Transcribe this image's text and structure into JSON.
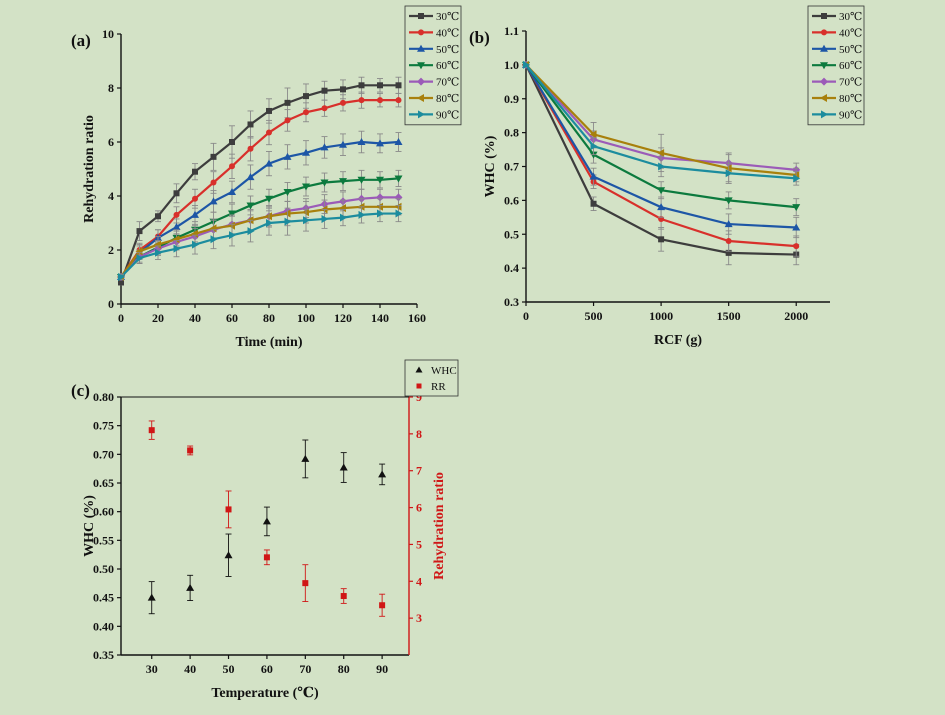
{
  "chart_data": [
    {
      "type": "line",
      "panel_label": "(a)",
      "xlabel": "Time (min)",
      "ylabel": "Rehydration ratio",
      "xlim": [
        0,
        160
      ],
      "ylim": [
        0,
        10
      ],
      "xticks": [
        "0",
        "20",
        "40",
        "60",
        "80",
        "100",
        "120",
        "140",
        "160"
      ],
      "yticks": [
        "0",
        "2",
        "4",
        "6",
        "8",
        "10"
      ],
      "x": [
        0,
        10,
        20,
        30,
        40,
        50,
        60,
        70,
        80,
        90,
        100,
        110,
        120,
        130,
        140,
        150
      ],
      "legend_position": "top-right",
      "series": [
        {
          "name": "30℃",
          "color": "#3d3d3d",
          "marker": "square",
          "values": [
            0.8,
            2.7,
            3.25,
            4.1,
            4.9,
            5.45,
            6.0,
            6.65,
            7.15,
            7.45,
            7.7,
            7.9,
            7.95,
            8.1,
            8.1,
            8.1
          ],
          "err": [
            0.1,
            0.35,
            0.2,
            0.35,
            0.3,
            0.5,
            0.6,
            0.5,
            0.45,
            0.55,
            0.45,
            0.35,
            0.35,
            0.3,
            0.25,
            0.3
          ]
        },
        {
          "name": "40℃",
          "color": "#d8302b",
          "marker": "circle",
          "values": [
            1.0,
            2.0,
            2.5,
            3.3,
            3.9,
            4.5,
            5.1,
            5.75,
            6.35,
            6.8,
            7.1,
            7.25,
            7.45,
            7.55,
            7.55,
            7.55
          ],
          "err": [
            0.1,
            0.25,
            0.25,
            0.3,
            0.35,
            0.4,
            0.45,
            0.45,
            0.45,
            0.4,
            0.35,
            0.3,
            0.3,
            0.3,
            0.25,
            0.25
          ]
        },
        {
          "name": "50℃",
          "color": "#1d56a6",
          "marker": "triangle-up",
          "values": [
            1.0,
            1.9,
            2.45,
            2.85,
            3.3,
            3.8,
            4.15,
            4.7,
            5.2,
            5.45,
            5.6,
            5.8,
            5.9,
            6.0,
            5.95,
            6.0
          ],
          "err": [
            0.1,
            0.25,
            0.3,
            0.3,
            0.35,
            0.4,
            0.4,
            0.45,
            0.45,
            0.45,
            0.45,
            0.4,
            0.4,
            0.4,
            0.35,
            0.35
          ]
        },
        {
          "name": "60℃",
          "color": "#0c7a3e",
          "marker": "triangle-down",
          "values": [
            1.0,
            1.75,
            2.1,
            2.45,
            2.75,
            3.05,
            3.35,
            3.65,
            3.9,
            4.15,
            4.35,
            4.5,
            4.55,
            4.6,
            4.6,
            4.65
          ],
          "err": [
            0.1,
            0.25,
            0.25,
            0.3,
            0.3,
            0.35,
            0.35,
            0.35,
            0.35,
            0.35,
            0.35,
            0.35,
            0.35,
            0.35,
            0.3,
            0.3
          ]
        },
        {
          "name": "70℃",
          "color": "#9b5bb8",
          "marker": "diamond",
          "values": [
            1.0,
            1.75,
            2.05,
            2.3,
            2.5,
            2.75,
            2.95,
            3.1,
            3.25,
            3.45,
            3.55,
            3.7,
            3.8,
            3.9,
            3.95,
            3.95
          ],
          "err": [
            0.1,
            0.2,
            0.25,
            0.3,
            0.3,
            0.35,
            0.35,
            0.35,
            0.35,
            0.35,
            0.35,
            0.35,
            0.35,
            0.35,
            0.3,
            0.3
          ]
        },
        {
          "name": "80℃",
          "color": "#a8800c",
          "marker": "triangle-left",
          "values": [
            1.0,
            1.95,
            2.2,
            2.4,
            2.6,
            2.8,
            2.9,
            3.1,
            3.25,
            3.35,
            3.4,
            3.5,
            3.55,
            3.6,
            3.6,
            3.6
          ],
          "err": [
            0.1,
            0.25,
            0.3,
            0.3,
            0.3,
            0.35,
            0.35,
            0.4,
            0.4,
            0.45,
            0.4,
            0.35,
            0.3,
            0.3,
            0.3,
            0.3
          ]
        },
        {
          "name": "90℃",
          "color": "#1c8c9e",
          "marker": "triangle-right",
          "values": [
            1.0,
            1.7,
            1.9,
            2.05,
            2.2,
            2.4,
            2.55,
            2.7,
            3.0,
            3.05,
            3.1,
            3.15,
            3.2,
            3.3,
            3.35,
            3.35
          ],
          "err": [
            0.1,
            0.2,
            0.25,
            0.3,
            0.35,
            0.35,
            0.4,
            0.4,
            0.45,
            0.5,
            0.4,
            0.35,
            0.3,
            0.3,
            0.3,
            0.3
          ]
        }
      ]
    },
    {
      "type": "line",
      "panel_label": "(b)",
      "xlabel": "RCF (g)",
      "ylabel": "WHC (%)",
      "xlim": [
        0,
        2250
      ],
      "ylim": [
        0.3,
        1.1
      ],
      "xticks": [
        "0",
        "500",
        "1000",
        "1500",
        "2000"
      ],
      "yticks": [
        "0.3",
        "0.4",
        "0.5",
        "0.6",
        "0.7",
        "0.8",
        "0.9",
        "1.0",
        "1.1"
      ],
      "x": [
        0,
        500,
        1000,
        1500,
        2000
      ],
      "legend_position": "top-right",
      "series": [
        {
          "name": "30℃",
          "color": "#3d3d3d",
          "marker": "square",
          "values": [
            1.0,
            0.59,
            0.485,
            0.445,
            0.44
          ],
          "err": [
            0,
            0.02,
            0.035,
            0.035,
            0.03
          ]
        },
        {
          "name": "40℃",
          "color": "#d8302b",
          "marker": "circle",
          "values": [
            1.0,
            0.655,
            0.545,
            0.48,
            0.465
          ],
          "err": [
            0,
            0.02,
            0.03,
            0.03,
            0.03
          ]
        },
        {
          "name": "50℃",
          "color": "#1d56a6",
          "marker": "triangle-up",
          "values": [
            1.0,
            0.67,
            0.58,
            0.53,
            0.52
          ],
          "err": [
            0,
            0.025,
            0.03,
            0.03,
            0.03
          ]
        },
        {
          "name": "60℃",
          "color": "#0c7a3e",
          "marker": "triangle-down",
          "values": [
            1.0,
            0.735,
            0.63,
            0.6,
            0.58
          ],
          "err": [
            0,
            0.025,
            0.025,
            0.025,
            0.025
          ]
        },
        {
          "name": "70℃",
          "color": "#9b5bb8",
          "marker": "diamond",
          "values": [
            1.0,
            0.78,
            0.725,
            0.71,
            0.69
          ],
          "err": [
            0,
            0.025,
            0.03,
            0.03,
            0.02
          ]
        },
        {
          "name": "80℃",
          "color": "#a8800c",
          "marker": "triangle-left",
          "values": [
            1.0,
            0.795,
            0.74,
            0.695,
            0.675
          ],
          "err": [
            0,
            0.035,
            0.055,
            0.04,
            0.02
          ]
        },
        {
          "name": "90℃",
          "color": "#1c8c9e",
          "marker": "triangle-right",
          "values": [
            1.0,
            0.76,
            0.7,
            0.68,
            0.665
          ],
          "err": [
            0,
            0.025,
            0.03,
            0.03,
            0.02
          ]
        }
      ]
    },
    {
      "type": "scatter",
      "panel_label": "(c)",
      "xlabel": "Temperature (℃)",
      "ylabel": "WHC (%)",
      "y2label": "Rehydration ratio",
      "xlim": [
        22,
        97
      ],
      "ylim": [
        0.35,
        0.8
      ],
      "y2lim": [
        2,
        9
      ],
      "xticks": [
        "30",
        "40",
        "50",
        "60",
        "70",
        "80",
        "90"
      ],
      "yticks": [
        "0.35",
        "0.40",
        "0.45",
        "0.50",
        "0.55",
        "0.60",
        "0.65",
        "0.70",
        "0.75",
        "0.80"
      ],
      "y2ticks": [
        "3",
        "4",
        "5",
        "6",
        "7",
        "8",
        "9"
      ],
      "x": [
        30,
        40,
        50,
        60,
        70,
        80,
        90
      ],
      "legend_position": "top-right",
      "series": [
        {
          "name": "WHC",
          "axis": "left",
          "color": "#111111",
          "marker": "triangle-up",
          "values": [
            0.45,
            0.467,
            0.524,
            0.583,
            0.692,
            0.677,
            0.665
          ],
          "err": [
            0.028,
            0.022,
            0.037,
            0.025,
            0.033,
            0.026,
            0.018
          ]
        },
        {
          "name": "RR",
          "axis": "right",
          "color": "#d01616",
          "marker": "square",
          "values": [
            8.1,
            7.55,
            5.95,
            4.65,
            3.95,
            3.6,
            3.35
          ],
          "err": [
            0.25,
            0.12,
            0.5,
            0.2,
            0.5,
            0.2,
            0.3
          ]
        }
      ]
    }
  ]
}
